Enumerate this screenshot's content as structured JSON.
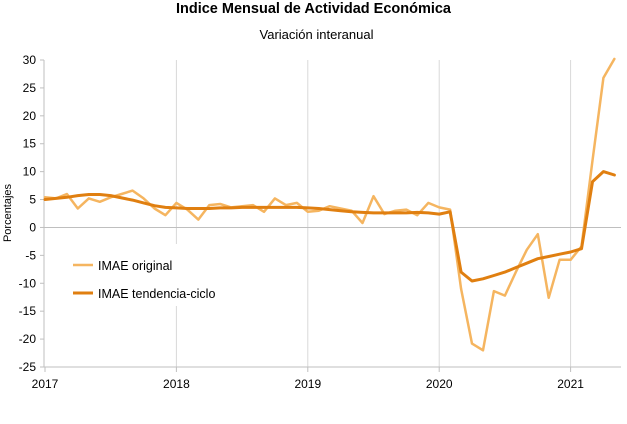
{
  "chart_data": {
    "type": "line",
    "title": "Indice Mensual de  Actividad Económica",
    "subtitle": "Variación interanual",
    "ylabel": "Porcentajes",
    "xlabel": "",
    "ylim": [
      -25,
      30
    ],
    "yticks": [
      30,
      25,
      20,
      15,
      10,
      5,
      0,
      -5,
      -10,
      -15,
      -20,
      -25
    ],
    "xlim": [
      "2017-01",
      "2021-05"
    ],
    "xticks": [
      "2017",
      "2018",
      "2019",
      "2020",
      "2021"
    ],
    "grid": "vertical",
    "legend_position": "center-left",
    "x": [
      "2017-01",
      "2017-02",
      "2017-03",
      "2017-04",
      "2017-05",
      "2017-06",
      "2017-07",
      "2017-08",
      "2017-09",
      "2017-10",
      "2017-11",
      "2017-12",
      "2018-01",
      "2018-02",
      "2018-03",
      "2018-04",
      "2018-05",
      "2018-06",
      "2018-07",
      "2018-08",
      "2018-09",
      "2018-10",
      "2018-11",
      "2018-12",
      "2019-01",
      "2019-02",
      "2019-03",
      "2019-04",
      "2019-05",
      "2019-06",
      "2019-07",
      "2019-08",
      "2019-09",
      "2019-10",
      "2019-11",
      "2019-12",
      "2020-01",
      "2020-02",
      "2020-03",
      "2020-04",
      "2020-05",
      "2020-06",
      "2020-07",
      "2020-08",
      "2020-09",
      "2020-10",
      "2020-11",
      "2020-12",
      "2021-01",
      "2021-02",
      "2021-03",
      "2021-04",
      "2021-05"
    ],
    "series": [
      {
        "name": "IMAE original",
        "color": "#F5B560",
        "values": [
          5.4,
          5.2,
          6.0,
          3.4,
          5.2,
          4.6,
          5.4,
          6.0,
          6.6,
          5.2,
          3.4,
          2.2,
          4.4,
          3.2,
          1.4,
          4.0,
          4.2,
          3.6,
          3.8,
          4.0,
          2.8,
          5.2,
          4.0,
          4.4,
          2.8,
          3.0,
          3.8,
          3.4,
          3.0,
          0.8,
          5.6,
          2.4,
          3.0,
          3.2,
          2.2,
          4.4,
          3.6,
          3.2,
          -11.0,
          -20.8,
          -22.0,
          -11.4,
          -12.2,
          -8.0,
          -4.0,
          -1.2,
          -12.6,
          -5.8,
          -5.8,
          -3.4,
          12.0,
          26.8,
          30.2
        ]
      },
      {
        "name": "IMAE tendencia-ciclo",
        "color": "#E07F10",
        "values": [
          5.0,
          5.2,
          5.4,
          5.7,
          5.9,
          5.9,
          5.7,
          5.3,
          4.9,
          4.4,
          3.9,
          3.6,
          3.5,
          3.4,
          3.4,
          3.4,
          3.5,
          3.5,
          3.6,
          3.6,
          3.6,
          3.6,
          3.6,
          3.6,
          3.5,
          3.4,
          3.2,
          3.0,
          2.8,
          2.7,
          2.6,
          2.6,
          2.6,
          2.6,
          2.7,
          2.6,
          2.4,
          2.8,
          -8.0,
          -9.6,
          -9.2,
          -8.6,
          -8.0,
          -7.2,
          -6.4,
          -5.6,
          -5.2,
          -4.8,
          -4.4,
          -3.8,
          8.2,
          10.0,
          9.4
        ]
      }
    ]
  }
}
